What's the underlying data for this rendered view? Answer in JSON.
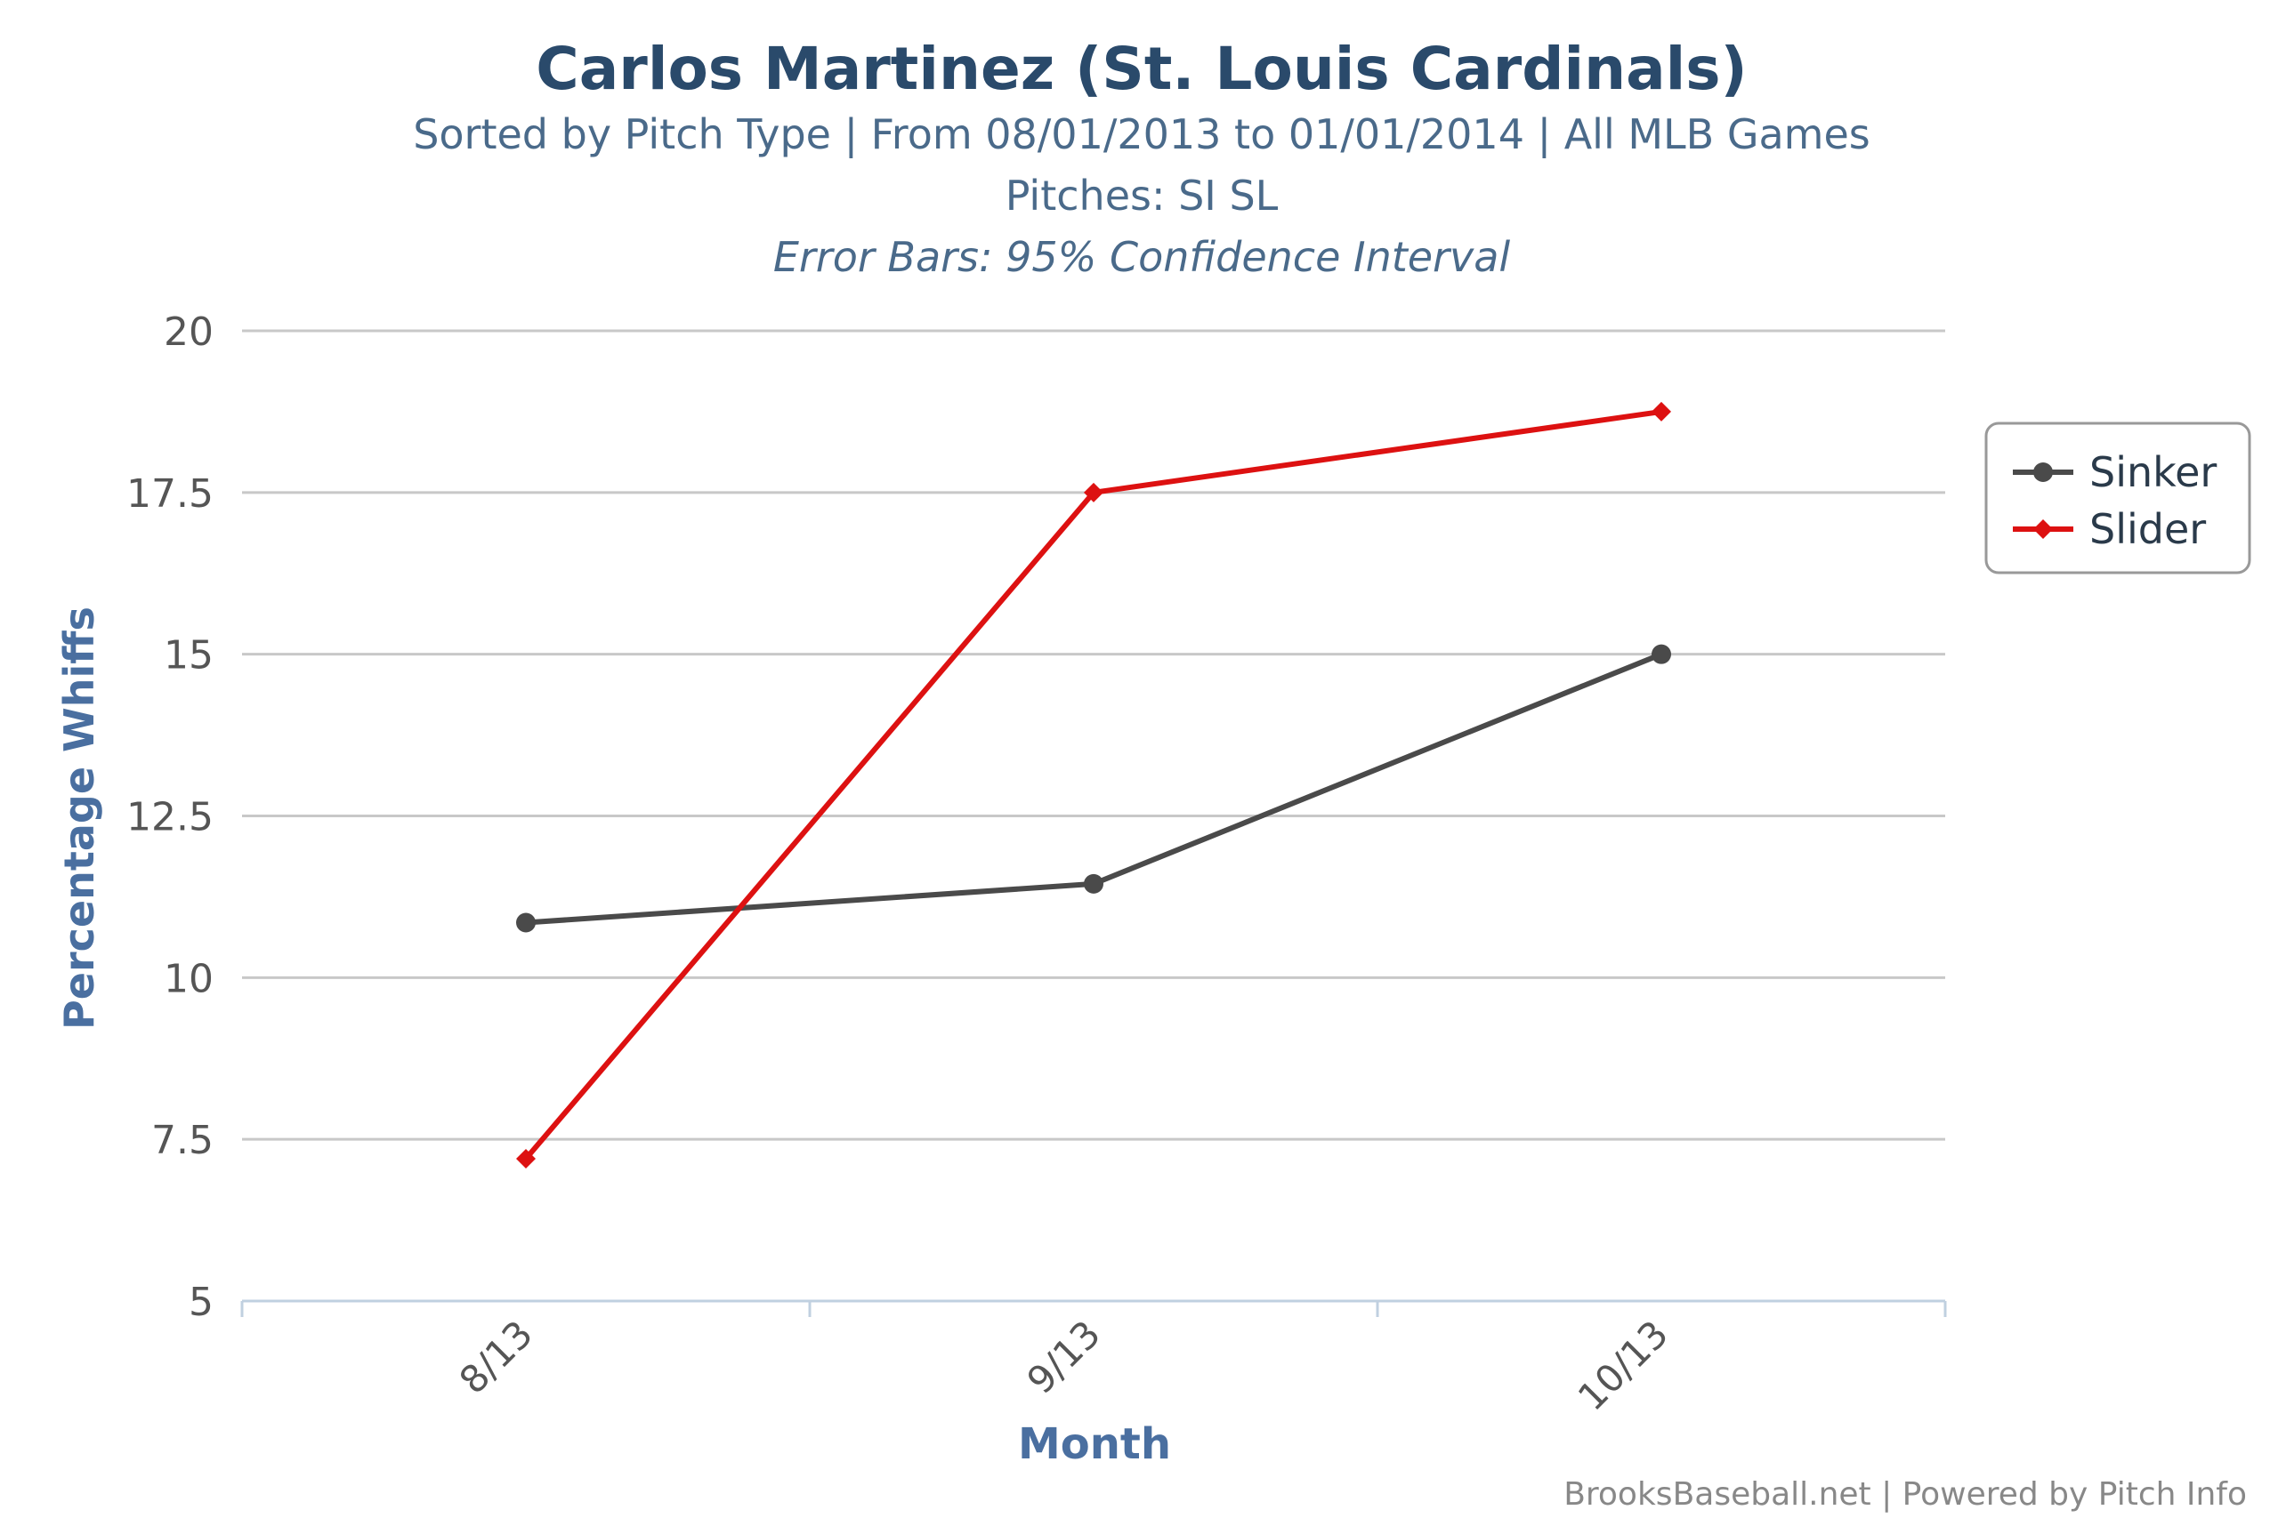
{
  "chart_data": {
    "type": "line",
    "title": "Carlos Martinez (St. Louis Cardinals)",
    "subtitle_lines": [
      "Sorted by Pitch Type | From 08/01/2013 to 01/01/2014 | All MLB Games",
      "Pitches: SI SL",
      "Error Bars: 95% Confidence Interval"
    ],
    "xlabel": "Month",
    "ylabel": "Percentage Whiffs",
    "categories": [
      "8/13",
      "9/13",
      "10/13"
    ],
    "ylim": [
      5,
      20
    ],
    "yticks": [
      5,
      7.5,
      10,
      12.5,
      15,
      17.5,
      20
    ],
    "grid": true,
    "legend_position": "right",
    "series": [
      {
        "name": "Sinker",
        "color": "#4a4a4a",
        "marker": "circle",
        "values": [
          10.85,
          11.45,
          15.0
        ]
      },
      {
        "name": "Slider",
        "color": "#dd1111",
        "marker": "diamond",
        "values": [
          7.2,
          17.5,
          18.75
        ]
      }
    ],
    "credits": "BrooksBaseball.net | Powered by Pitch Info",
    "colors": {
      "title": "#2a4a6b",
      "subtitle": "#4a6a8a",
      "axis_label": "#4a6fa0",
      "grid": "#c8c8c8",
      "axis": "#c0d0e0",
      "tick_label": "#555555",
      "credits": "#888888"
    }
  }
}
